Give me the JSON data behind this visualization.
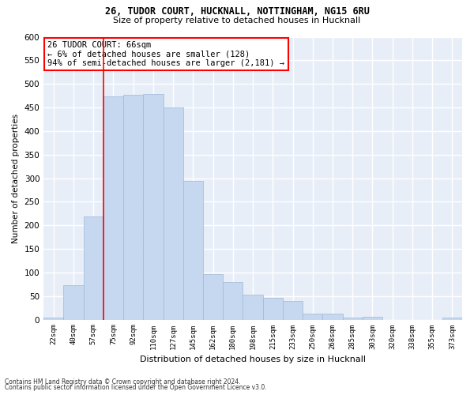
{
  "title1": "26, TUDOR COURT, HUCKNALL, NOTTINGHAM, NG15 6RU",
  "title2": "Size of property relative to detached houses in Hucknall",
  "xlabel": "Distribution of detached houses by size in Hucknall",
  "ylabel": "Number of detached properties",
  "categories": [
    "22sqm",
    "40sqm",
    "57sqm",
    "75sqm",
    "92sqm",
    "110sqm",
    "127sqm",
    "145sqm",
    "162sqm",
    "180sqm",
    "198sqm",
    "215sqm",
    "233sqm",
    "250sqm",
    "268sqm",
    "285sqm",
    "303sqm",
    "320sqm",
    "338sqm",
    "355sqm",
    "373sqm"
  ],
  "values": [
    5,
    73,
    219,
    474,
    476,
    479,
    450,
    294,
    96,
    80,
    53,
    46,
    40,
    13,
    12,
    4,
    6,
    0,
    0,
    0,
    5
  ],
  "bar_color": "#c5d8f0",
  "bar_edge_color": "#a0b8d8",
  "bg_color": "#e8eef8",
  "grid_color": "#ffffff",
  "annotation_text": "26 TUDOR COURT: 66sqm\n← 6% of detached houses are smaller (128)\n94% of semi-detached houses are larger (2,181) →",
  "annotation_box_color": "white",
  "annotation_box_edge": "red",
  "vline_color": "red",
  "ylim": [
    0,
    600
  ],
  "yticks": [
    0,
    50,
    100,
    150,
    200,
    250,
    300,
    350,
    400,
    450,
    500,
    550,
    600
  ],
  "footnote1": "Contains HM Land Registry data © Crown copyright and database right 2024.",
  "footnote2": "Contains public sector information licensed under the Open Government Licence v3.0."
}
